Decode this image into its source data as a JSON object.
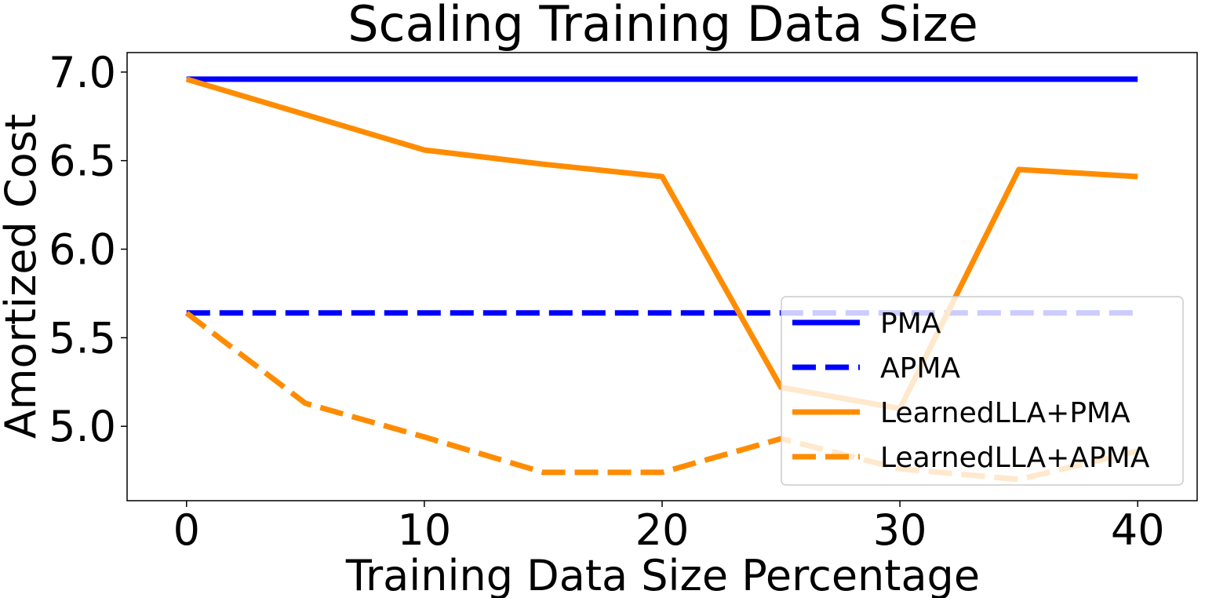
{
  "chart_data": {
    "type": "line",
    "title": "Scaling Training Data Size",
    "xlabel": "Training Data Size Percentage",
    "ylabel": "Amortized Cost",
    "xlim": [
      -2.5,
      42.5
    ],
    "ylim": [
      4.58,
      7.11
    ],
    "xticks": [
      0,
      10,
      20,
      30,
      40
    ],
    "yticks": [
      5.0,
      5.5,
      6.0,
      6.5,
      7.0
    ],
    "ytick_labels": [
      "5.0",
      "5.5",
      "6.0",
      "6.5",
      "7.0"
    ],
    "xtick_labels": [
      "0",
      "10",
      "20",
      "30",
      "40"
    ],
    "legend_position": "lower-right",
    "grid": false,
    "series": [
      {
        "name": "PMA",
        "color": "#0000ff",
        "style": "solid",
        "x": [
          0,
          5,
          10,
          15,
          20,
          25,
          30,
          35,
          40
        ],
        "y": [
          6.96,
          6.96,
          6.96,
          6.96,
          6.96,
          6.96,
          6.96,
          6.96,
          6.96
        ]
      },
      {
        "name": "APMA",
        "color": "#0000ff",
        "style": "dashed",
        "x": [
          0,
          5,
          10,
          15,
          20,
          25,
          30,
          35,
          40
        ],
        "y": [
          5.64,
          5.64,
          5.64,
          5.64,
          5.64,
          5.64,
          5.64,
          5.64,
          5.64
        ]
      },
      {
        "name": "LearnedLLA+PMA",
        "color": "#ff8c00",
        "style": "solid",
        "x": [
          0,
          5,
          10,
          15,
          20,
          25,
          30,
          35,
          40
        ],
        "y": [
          6.96,
          6.76,
          6.56,
          6.48,
          6.41,
          5.22,
          5.1,
          6.45,
          6.41
        ]
      },
      {
        "name": "LearnedLLA+APMA",
        "color": "#ff8c00",
        "style": "dashed",
        "x": [
          0,
          5,
          10,
          15,
          20,
          25,
          30,
          35,
          40
        ],
        "y": [
          5.64,
          5.13,
          4.94,
          4.74,
          4.74,
          4.93,
          4.76,
          4.7,
          4.86
        ]
      }
    ]
  }
}
